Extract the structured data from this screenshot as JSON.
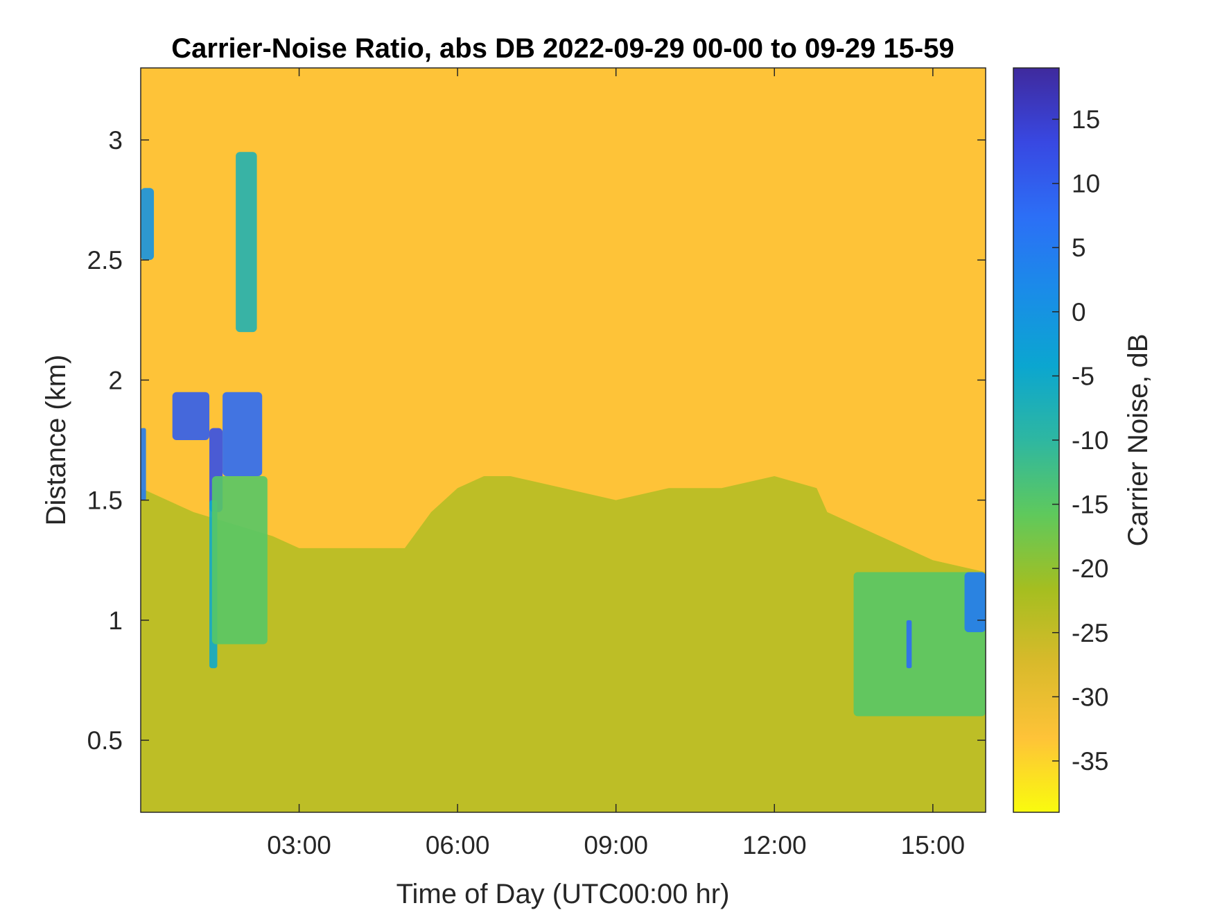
{
  "chart_data": {
    "type": "heatmap",
    "title": "Carrier-Noise Ratio, abs DB 2022-09-29 00-00 to 09-29 15-59",
    "xlabel": "Time of Day (UTC00:00 hr)",
    "ylabel": "Distance (km)",
    "colorbar_label": "Carrier Noise, dB",
    "x_unit": "hours UTC",
    "xlim": [
      0,
      16
    ],
    "ylim": [
      0.2,
      3.3
    ],
    "clim": [
      -39,
      19
    ],
    "colormap": "parula (reversed: yellow = low, dark blue = high)",
    "colormap_stops": [
      "#f9fb0e",
      "#fec338",
      "#d9ba2b",
      "#a5be20",
      "#5fc95c",
      "#2eb7a1",
      "#0ba6d0",
      "#1a8ce8",
      "#2c6ff6",
      "#3848e2",
      "#3f2a9d"
    ],
    "x_ticks": [
      3,
      6,
      9,
      12,
      15
    ],
    "x_tick_labels": [
      "03:00",
      "06:00",
      "09:00",
      "12:00",
      "15:00"
    ],
    "y_ticks": [
      0.5,
      1,
      1.5,
      2,
      2.5,
      3
    ],
    "y_tick_labels": [
      "0.5",
      "1",
      "1.5",
      "2",
      "2.5",
      "3"
    ],
    "c_ticks": [
      -35,
      -30,
      -25,
      -20,
      -15,
      -10,
      -5,
      0,
      5,
      10,
      15
    ],
    "c_tick_labels": [
      "-35",
      "-30",
      "-25",
      "-20",
      "-15",
      "-10",
      "-5",
      "0",
      "5",
      "10",
      "15"
    ],
    "background_value": -30,
    "boundary_layer_top_km": {
      "x": [
        0,
        1,
        2.5,
        3,
        4,
        5,
        5.5,
        6,
        6.5,
        7,
        8,
        9,
        10,
        11,
        12,
        12.8,
        13,
        14,
        15,
        16
      ],
      "y": [
        1.55,
        1.45,
        1.35,
        1.3,
        1.3,
        1.3,
        1.45,
        1.55,
        1.6,
        1.6,
        1.55,
        1.5,
        1.55,
        1.55,
        1.6,
        1.55,
        1.45,
        1.35,
        1.25,
        1.2
      ]
    },
    "boundary_layer_value": -23,
    "features": [
      {
        "x": [
          0,
          0.25
        ],
        "y": [
          2.5,
          2.8
        ],
        "value": 0
      },
      {
        "x": [
          0,
          0.1
        ],
        "y": [
          1.5,
          1.8
        ],
        "value": 5
      },
      {
        "x": [
          0.6,
          1.3
        ],
        "y": [
          1.75,
          1.95
        ],
        "value": 10
      },
      {
        "x": [
          1.3,
          1.55
        ],
        "y": [
          1.45,
          1.8
        ],
        "value": 12
      },
      {
        "x": [
          1.55,
          2.3
        ],
        "y": [
          1.6,
          1.95
        ],
        "value": 8
      },
      {
        "x": [
          1.3,
          1.45
        ],
        "y": [
          0.8,
          1.5
        ],
        "value": -5
      },
      {
        "x": [
          1.8,
          2.2
        ],
        "y": [
          2.2,
          2.95
        ],
        "value": -8
      },
      {
        "x": [
          1.35,
          2.4
        ],
        "y": [
          0.9,
          1.6
        ],
        "value": -15
      },
      {
        "x": [
          13.5,
          16
        ],
        "y": [
          0.6,
          1.2
        ],
        "value": -15
      },
      {
        "x": [
          15.6,
          16
        ],
        "y": [
          0.95,
          1.2
        ],
        "value": 5
      },
      {
        "x": [
          14.5,
          14.6
        ],
        "y": [
          0.8,
          1.0
        ],
        "value": 8
      }
    ]
  }
}
